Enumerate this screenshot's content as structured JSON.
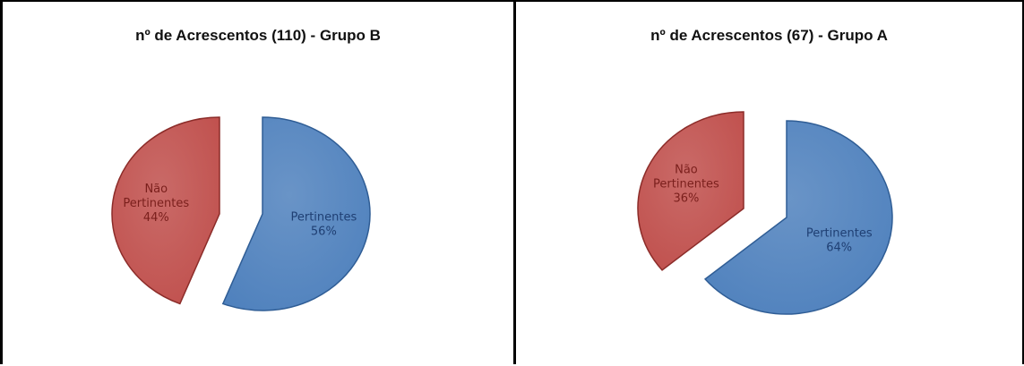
{
  "chart_data": [
    {
      "type": "pie",
      "title": "nº de Acrescentos (110) - Grupo B",
      "slices": [
        {
          "label_lines": [
            "Pertinentes",
            "56%"
          ],
          "value": 56,
          "color": "#4f81bd",
          "stroke": "#2f5d95",
          "text_color": "#1f3f73"
        },
        {
          "label_lines": [
            "Não",
            "Pertinentes",
            "44%"
          ],
          "value": 44,
          "color": "#c0504d",
          "stroke": "#8c2c29",
          "text_color": "#7a1f1c"
        }
      ]
    },
    {
      "type": "pie",
      "title": "nº de Acrescentos (67) - Grupo A",
      "slices": [
        {
          "label_lines": [
            "Pertinentes",
            "64%"
          ],
          "value": 64,
          "color": "#4f81bd",
          "stroke": "#2f5d95",
          "text_color": "#1f3f73"
        },
        {
          "label_lines": [
            "Não",
            "Pertinentes",
            "36%"
          ],
          "value": 36,
          "color": "#c0504d",
          "stroke": "#8c2c29",
          "text_color": "#7a1f1c"
        }
      ]
    }
  ]
}
